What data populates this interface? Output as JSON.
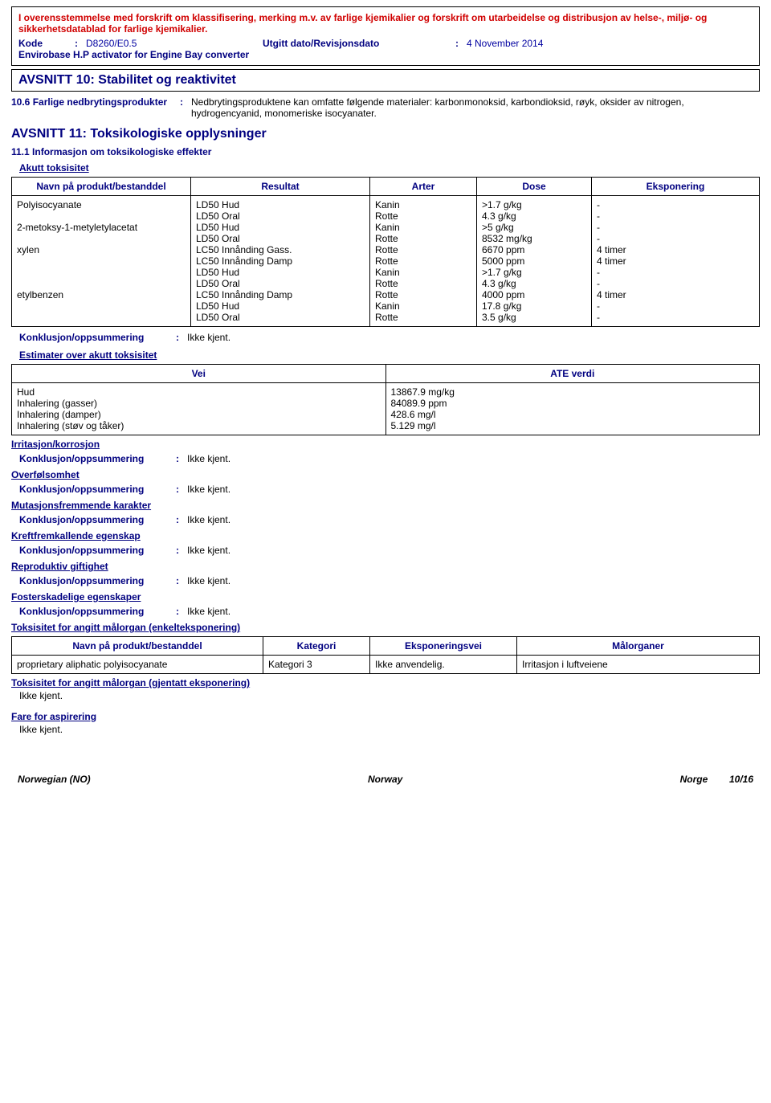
{
  "header": {
    "compliance_text": "I overensstemmelse med forskrift om klassifisering, merking m.v. av farlige kjemikalier og forskrift om utarbeidelse og distribusjon av helse-, miljø- og sikkerhetsdatablad for farlige kjemikalier.",
    "kode_label": "Kode",
    "kode_value": "D8260/E0.5",
    "dato_label": "Utgitt dato/Revisjonsdato",
    "dato_value": "4 November 2014",
    "product": "Envirobase H.P activator for Engine Bay converter"
  },
  "section10": {
    "title": "AVSNITT 10: Stabilitet og reaktivitet",
    "item_label": "10.6 Farlige nedbrytingsprodukter",
    "item_value": "Nedbrytingsproduktene kan omfatte følgende materialer: karbonmonoksid, karbondioksid, røyk, oksider av nitrogen, hydrogencyanid, monomeriske isocyanater."
  },
  "section11": {
    "title": "AVSNITT 11: Toksikologiske opplysninger",
    "sub1": "11.1 Informasjon om toksikologiske effekter",
    "acute_label": "Akutt toksisitet",
    "tox_headers": [
      "Navn på produkt/bestanddel",
      "Resultat",
      "Arter",
      "Dose",
      "Eksponering"
    ],
    "tox_rows": [
      {
        "name": "Polyisocyanate",
        "r": "LD50 Hud",
        "a": "Kanin",
        "d": ">1.7 g/kg",
        "e": "-"
      },
      {
        "name": "",
        "r": "LD50 Oral",
        "a": "Rotte",
        "d": "4.3 g/kg",
        "e": "-"
      },
      {
        "name": "2-metoksy-1-metyletylacetat",
        "r": "LD50 Hud",
        "a": "Kanin",
        "d": ">5 g/kg",
        "e": "-"
      },
      {
        "name": "",
        "r": "LD50 Oral",
        "a": "Rotte",
        "d": "8532 mg/kg",
        "e": "-"
      },
      {
        "name": "xylen",
        "r": "LC50 Innånding Gass.",
        "a": "Rotte",
        "d": "6670 ppm",
        "e": "4 timer"
      },
      {
        "name": "",
        "r": "LC50 Innånding Damp",
        "a": "Rotte",
        "d": "5000 ppm",
        "e": "4 timer"
      },
      {
        "name": "",
        "r": "LD50 Hud",
        "a": "Kanin",
        "d": ">1.7 g/kg",
        "e": "-"
      },
      {
        "name": "",
        "r": "LD50 Oral",
        "a": "Rotte",
        "d": "4.3 g/kg",
        "e": "-"
      },
      {
        "name": "etylbenzen",
        "r": "LC50 Innånding Damp",
        "a": "Rotte",
        "d": "4000 ppm",
        "e": "4 timer"
      },
      {
        "name": "",
        "r": "LD50 Hud",
        "a": "Kanin",
        "d": "17.8 g/kg",
        "e": "-"
      },
      {
        "name": "",
        "r": "LD50 Oral",
        "a": "Rotte",
        "d": "3.5 g/kg",
        "e": "-"
      }
    ],
    "concl_label": "Konklusjon/oppsummering",
    "concl_value": "Ikke kjent.",
    "estimate_label": "Estimater over akutt toksisitet",
    "ate_headers": [
      "Vei",
      "ATE verdi"
    ],
    "ate_rows": [
      {
        "v": "Hud",
        "a": "13867.9 mg/kg"
      },
      {
        "v": "Inhalering (gasser)",
        "a": "84089.9 ppm"
      },
      {
        "v": "Inhalering (damper)",
        "a": "428.6 mg/l"
      },
      {
        "v": "Inhalering (støv og tåker)",
        "a": "5.129 mg/l"
      }
    ],
    "sections": [
      "Irritasjon/korrosjon",
      "Overfølsomhet",
      "Mutasjonsfremmende karakter",
      "Kreftfremkallende egenskap",
      "Reproduktiv giftighet",
      "Fosterskadelige egenskaper"
    ],
    "target_single_label": "Toksisitet for angitt målorgan (enkelteksponering)",
    "target_headers": [
      "Navn på produkt/bestanddel",
      "Kategori",
      "Eksponeringsvei",
      "Målorganer"
    ],
    "target_row": {
      "n": "proprietary aliphatic polyisocyanate",
      "k": "Kategori 3",
      "e": "Ikke anvendelig.",
      "m": "Irritasjon i luftveiene"
    },
    "target_repeat_label": "Toksisitet for angitt målorgan (gjentatt eksponering)",
    "not_known": "Ikke kjent.",
    "aspiration": "Fare for aspirering"
  },
  "footer": {
    "left": "Norwegian (NO)",
    "center": "Norway",
    "right1": "Norge",
    "right2": "10/16"
  }
}
